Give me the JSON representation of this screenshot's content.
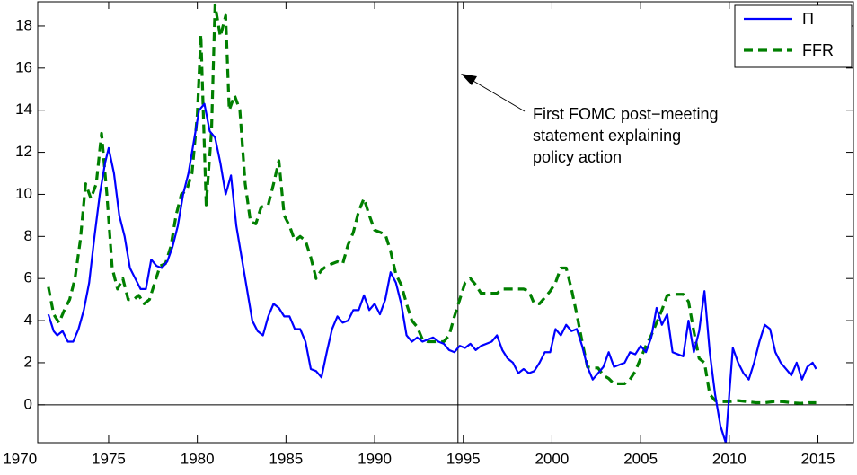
{
  "chart_data": {
    "type": "line",
    "xlim": [
      1971,
      2017
    ],
    "xticks": [
      1970,
      1975,
      1980,
      1985,
      1990,
      1995,
      2000,
      2005,
      2010,
      2015
    ],
    "ylim": [
      -1.8,
      19.15
    ],
    "yticks": [
      0,
      2,
      4,
      6,
      8,
      10,
      12,
      14,
      16,
      18
    ],
    "hline": 0,
    "legend": "upper right",
    "annotation": {
      "x": 1994.7,
      "text": [
        "First FOMC post−meeting",
        "statement explaining",
        "policy action"
      ]
    },
    "series": [
      {
        "name": "Π",
        "color": "#0000ff",
        "style": "solid",
        "x": [
          1971.6,
          1971.9,
          1972.1,
          1972.4,
          1972.7,
          1973.0,
          1973.3,
          1973.6,
          1973.9,
          1974.2,
          1974.5,
          1974.8,
          1975.0,
          1975.3,
          1975.6,
          1975.9,
          1976.2,
          1976.5,
          1976.8,
          1977.1,
          1977.4,
          1977.7,
          1978.0,
          1978.3,
          1978.6,
          1978.9,
          1979.2,
          1979.5,
          1979.8,
          1980.1,
          1980.4,
          1980.7,
          1981.0,
          1981.3,
          1981.6,
          1981.9,
          1982.2,
          1982.5,
          1982.8,
          1983.1,
          1983.4,
          1983.7,
          1984.0,
          1984.3,
          1984.6,
          1984.9,
          1985.2,
          1985.5,
          1985.8,
          1986.1,
          1986.4,
          1986.7,
          1987.0,
          1987.3,
          1987.6,
          1987.9,
          1988.2,
          1988.5,
          1988.8,
          1989.1,
          1989.4,
          1989.7,
          1990.0,
          1990.3,
          1990.6,
          1990.9,
          1991.2,
          1991.5,
          1991.8,
          1992.1,
          1992.4,
          1992.7,
          1993.0,
          1993.3,
          1993.6,
          1993.9,
          1994.2,
          1994.5,
          1994.8,
          1995.1,
          1995.4,
          1995.7,
          1996.0,
          1996.3,
          1996.6,
          1996.9,
          1997.2,
          1997.5,
          1997.8,
          1998.1,
          1998.4,
          1998.7,
          1999.0,
          1999.3,
          1999.6,
          1999.9,
          2000.2,
          2000.5,
          2000.8,
          2001.1,
          2001.4,
          2001.7,
          2002.0,
          2002.3,
          2002.6,
          2002.9,
          2003.2,
          2003.5,
          2003.8,
          2004.1,
          2004.4,
          2004.7,
          2005.0,
          2005.3,
          2005.6,
          2005.9,
          2006.2,
          2006.5,
          2006.8,
          2007.1,
          2007.4,
          2007.7,
          2008.0,
          2008.3,
          2008.6,
          2008.9,
          2009.2,
          2009.5,
          2009.8,
          2010.0,
          2010.2,
          2010.5,
          2010.8,
          2011.1,
          2011.4,
          2011.7,
          2012.0,
          2012.3,
          2012.6,
          2012.9,
          2013.2,
          2013.5,
          2013.8,
          2014.1,
          2014.4,
          2014.7,
          2014.9
        ],
        "values": [
          4.3,
          3.5,
          3.3,
          3.5,
          3.0,
          3.0,
          3.6,
          4.5,
          5.8,
          8.0,
          10.0,
          11.5,
          12.2,
          11.0,
          9.0,
          8.0,
          6.5,
          6.0,
          5.5,
          5.5,
          6.9,
          6.6,
          6.5,
          6.8,
          7.5,
          8.5,
          10.0,
          11.0,
          12.5,
          14.0,
          14.3,
          13.0,
          12.7,
          11.5,
          10.0,
          10.9,
          8.5,
          7.0,
          5.5,
          4.0,
          3.5,
          3.3,
          4.2,
          4.8,
          4.6,
          4.2,
          4.2,
          3.6,
          3.6,
          3.0,
          1.7,
          1.6,
          1.3,
          2.5,
          3.6,
          4.2,
          3.9,
          4.0,
          4.5,
          4.5,
          5.2,
          4.5,
          4.8,
          4.3,
          5.0,
          6.3,
          5.8,
          4.8,
          3.3,
          3.0,
          3.2,
          3.0,
          3.1,
          3.2,
          3.0,
          2.9,
          2.6,
          2.5,
          2.8,
          2.7,
          2.9,
          2.6,
          2.8,
          2.9,
          3.0,
          3.3,
          2.6,
          2.2,
          2.0,
          1.5,
          1.7,
          1.5,
          1.6,
          2.0,
          2.5,
          2.5,
          3.6,
          3.3,
          3.8,
          3.5,
          3.6,
          2.8,
          1.8,
          1.2,
          1.5,
          1.8,
          2.5,
          1.8,
          1.9,
          2.0,
          2.5,
          2.4,
          2.8,
          2.5,
          3.2,
          4.6,
          3.8,
          4.3,
          2.5,
          2.4,
          2.3,
          4.0,
          2.5,
          3.5,
          5.4,
          2.5,
          0.5,
          -1.0,
          -1.8,
          0.5,
          2.7,
          2.0,
          1.5,
          1.2,
          2.0,
          3.0,
          3.8,
          3.6,
          2.5,
          2.0,
          1.7,
          1.4,
          2.0,
          1.2,
          1.8,
          2.0,
          1.7
        ]
      },
      {
        "name": "FFR",
        "color": "#007f00",
        "style": "dashed",
        "x": [
          1971.6,
          1971.9,
          1972.2,
          1972.5,
          1972.8,
          1973.1,
          1973.4,
          1973.7,
          1974.0,
          1974.3,
          1974.6,
          1974.9,
          1975.2,
          1975.5,
          1975.8,
          1976.1,
          1976.4,
          1976.7,
          1977.0,
          1977.3,
          1977.6,
          1977.9,
          1978.2,
          1978.5,
          1978.8,
          1979.1,
          1979.4,
          1979.7,
          1980.0,
          1980.2,
          1980.5,
          1980.8,
          1981.0,
          1981.3,
          1981.6,
          1981.8,
          1982.1,
          1982.4,
          1982.7,
          1983.0,
          1983.3,
          1983.6,
          1984.0,
          1984.3,
          1984.6,
          1984.9,
          1985.2,
          1985.5,
          1985.8,
          1986.1,
          1986.4,
          1986.7,
          1987.0,
          1987.3,
          1987.6,
          1987.9,
          1988.2,
          1988.5,
          1988.8,
          1989.1,
          1989.4,
          1989.7,
          1990.0,
          1990.3,
          1990.6,
          1990.9,
          1991.2,
          1991.5,
          1991.8,
          1992.1,
          1992.4,
          1992.7,
          1993.0,
          1993.3,
          1993.6,
          1993.9,
          1994.2,
          1994.5,
          1994.8,
          1995.1,
          1995.4,
          1995.7,
          1996.0,
          1996.3,
          1996.6,
          1996.9,
          1997.2,
          1997.5,
          1997.8,
          1998.1,
          1998.4,
          1998.7,
          1999.0,
          1999.3,
          1999.6,
          1999.9,
          2000.2,
          2000.5,
          2000.8,
          2001.1,
          2001.4,
          2001.7,
          2002.0,
          2002.3,
          2002.6,
          2002.9,
          2003.2,
          2003.5,
          2003.8,
          2004.1,
          2004.4,
          2004.7,
          2005.0,
          2005.3,
          2005.6,
          2005.9,
          2006.2,
          2006.5,
          2006.8,
          2007.1,
          2007.4,
          2007.7,
          2008.0,
          2008.3,
          2008.6,
          2008.9,
          2009.2,
          2009.5,
          2010.0,
          2010.5,
          2011.0,
          2011.5,
          2012.0,
          2012.5,
          2013.0,
          2013.5,
          2014.0,
          2014.5,
          2014.9
        ],
        "values": [
          5.6,
          4.3,
          3.9,
          4.5,
          5.0,
          6.0,
          7.8,
          10.5,
          9.8,
          10.5,
          12.9,
          10.0,
          6.5,
          5.5,
          6.0,
          5.0,
          5.0,
          5.2,
          4.8,
          5.0,
          5.8,
          6.6,
          6.7,
          7.5,
          9.0,
          10.0,
          10.2,
          11.0,
          13.8,
          17.6,
          9.5,
          13.0,
          19.0,
          17.5,
          18.5,
          14.0,
          14.7,
          14.0,
          10.5,
          8.7,
          8.6,
          9.4,
          9.5,
          10.5,
          11.6,
          9.0,
          8.5,
          7.8,
          8.0,
          7.8,
          7.0,
          6.0,
          6.4,
          6.6,
          6.7,
          6.8,
          6.7,
          7.6,
          8.2,
          9.2,
          9.8,
          9.0,
          8.3,
          8.2,
          8.1,
          7.3,
          6.2,
          5.7,
          4.8,
          4.0,
          3.7,
          3.1,
          3.0,
          3.0,
          3.0,
          3.0,
          3.3,
          4.2,
          5.0,
          5.8,
          6.0,
          5.7,
          5.3,
          5.3,
          5.3,
          5.3,
          5.5,
          5.5,
          5.5,
          5.5,
          5.5,
          5.4,
          4.8,
          4.8,
          5.1,
          5.4,
          5.8,
          6.5,
          6.5,
          5.5,
          4.3,
          3.0,
          1.8,
          1.75,
          1.75,
          1.4,
          1.25,
          1.0,
          1.0,
          1.0,
          1.2,
          1.6,
          2.2,
          2.8,
          3.3,
          3.9,
          4.5,
          5.2,
          5.25,
          5.25,
          5.25,
          4.9,
          3.5,
          2.2,
          2.0,
          0.5,
          0.2,
          0.15,
          0.15,
          0.2,
          0.15,
          0.1,
          0.1,
          0.15,
          0.15,
          0.1,
          0.07,
          0.1,
          0.1
        ]
      }
    ]
  }
}
